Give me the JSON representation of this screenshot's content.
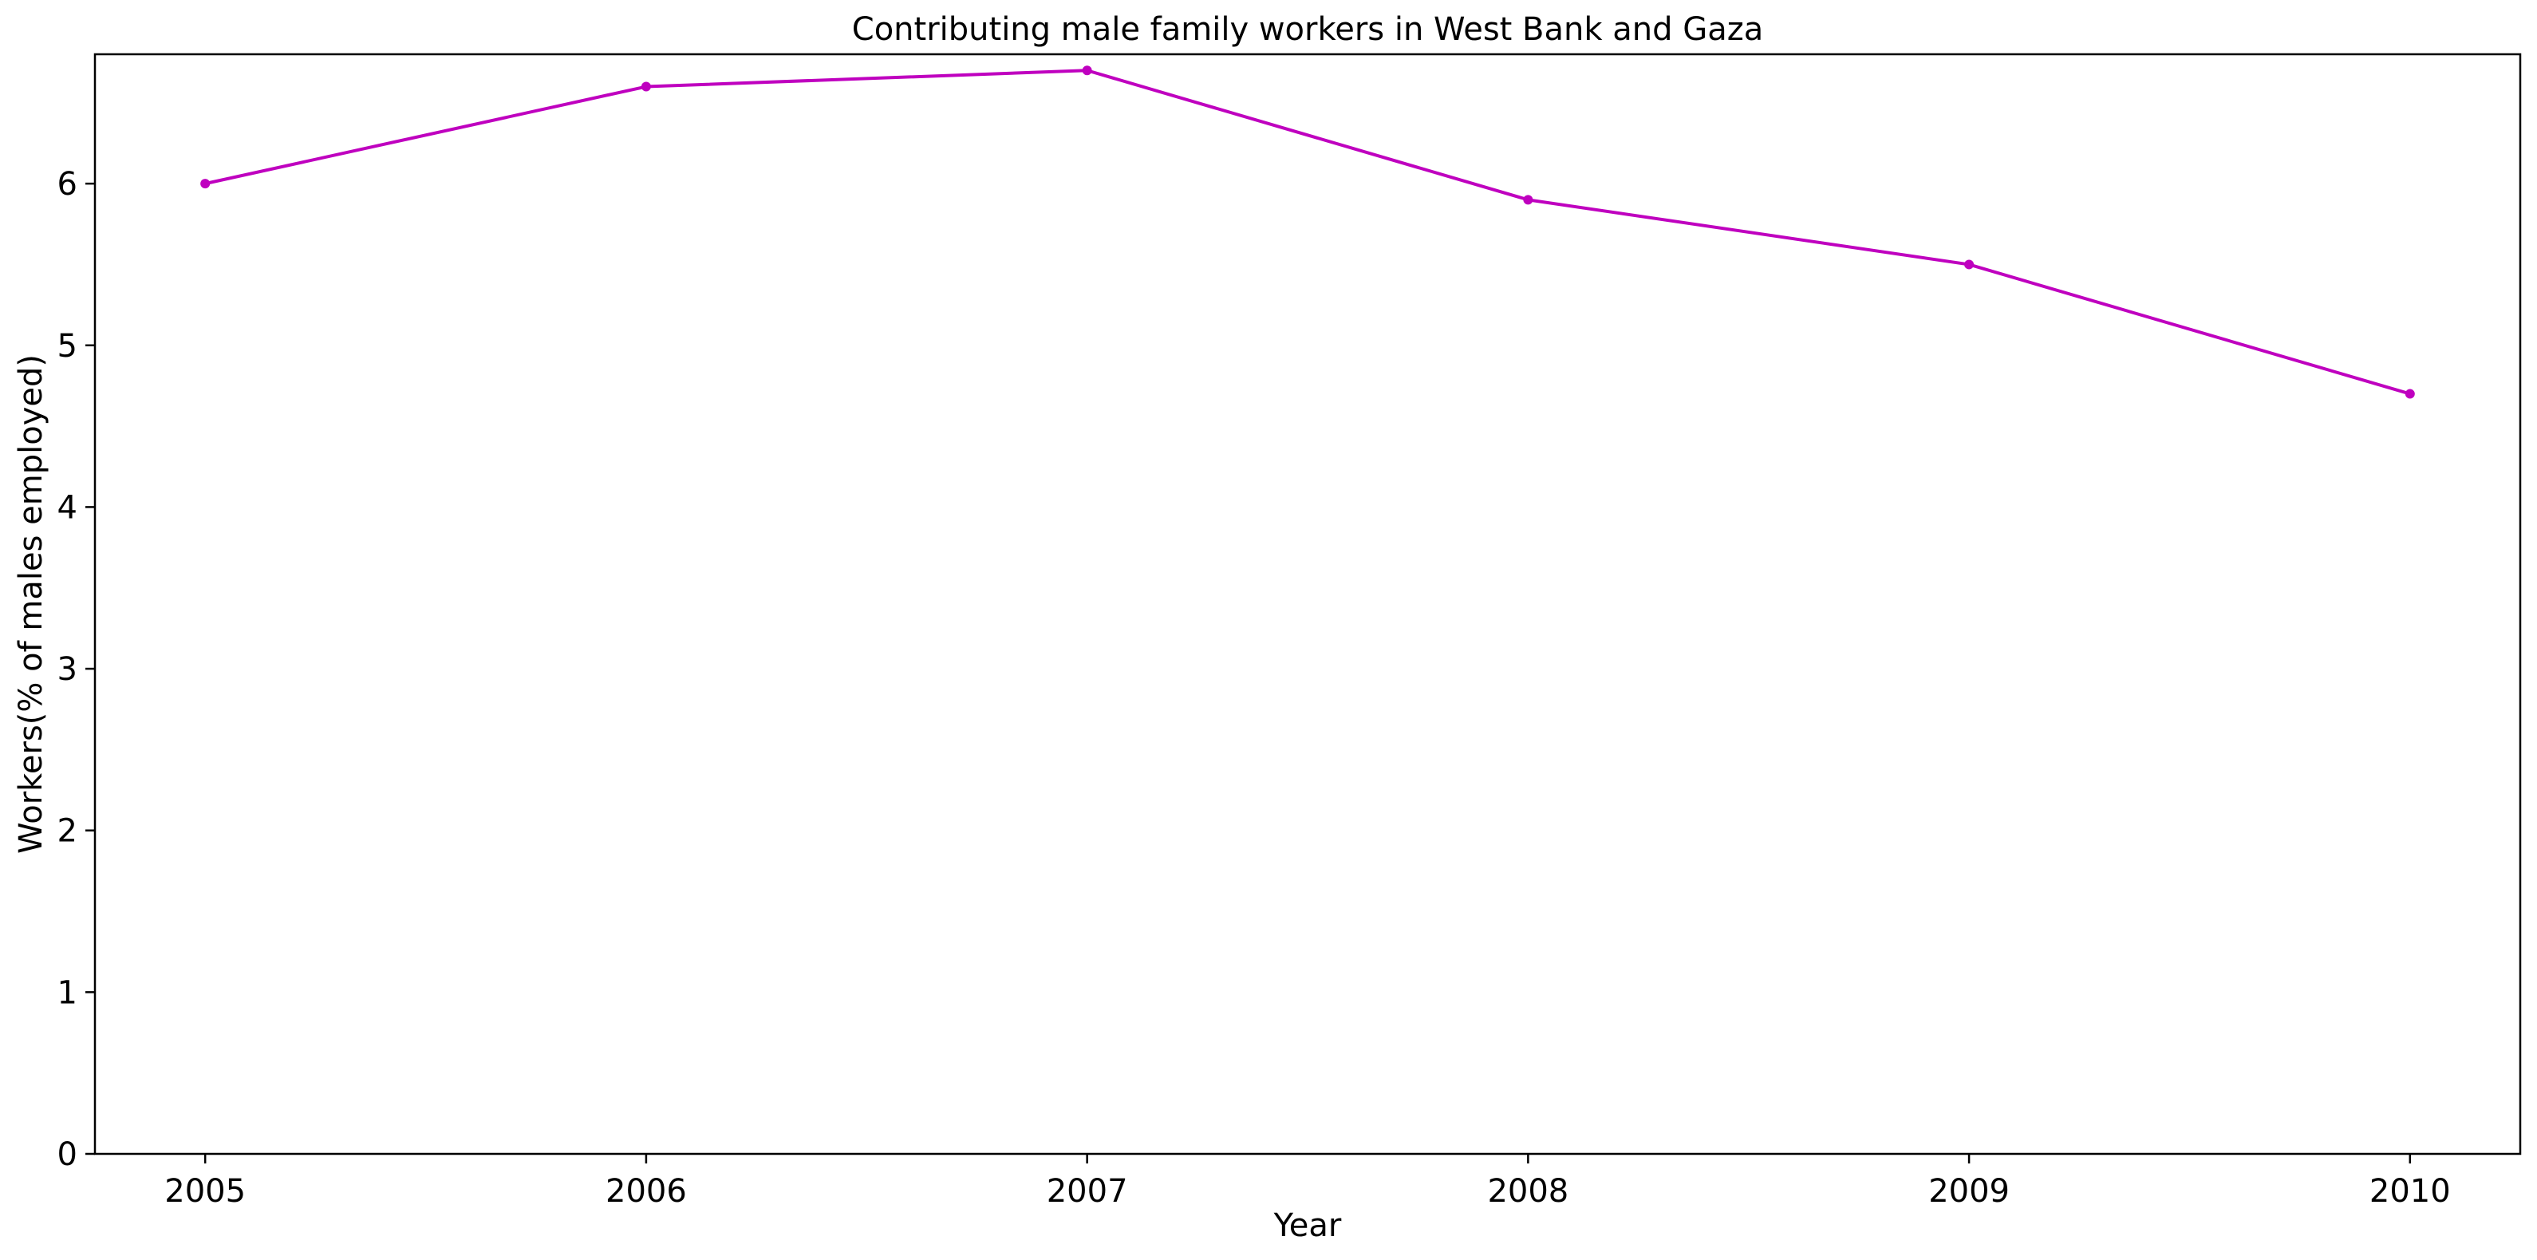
{
  "chart_data": {
    "type": "line",
    "title": "Contributing male family workers in West Bank and Gaza",
    "xlabel": "Year",
    "ylabel": "Workers(% of males employed)",
    "x": [
      2005,
      2006,
      2007,
      2008,
      2009,
      2010
    ],
    "series": [
      {
        "values": [
          6.0,
          6.6,
          6.7,
          5.9,
          5.5,
          4.7
        ],
        "color": "#bf00bf"
      }
    ],
    "xticks": [
      "2005",
      "2006",
      "2007",
      "2008",
      "2009",
      "2010"
    ],
    "yticks": [
      "0",
      "1",
      "2",
      "3",
      "4",
      "5",
      "6"
    ],
    "xlim": [
      2004.75,
      2010.25
    ],
    "ylim": [
      0,
      6.8
    ],
    "grid": false,
    "legend": "none"
  }
}
